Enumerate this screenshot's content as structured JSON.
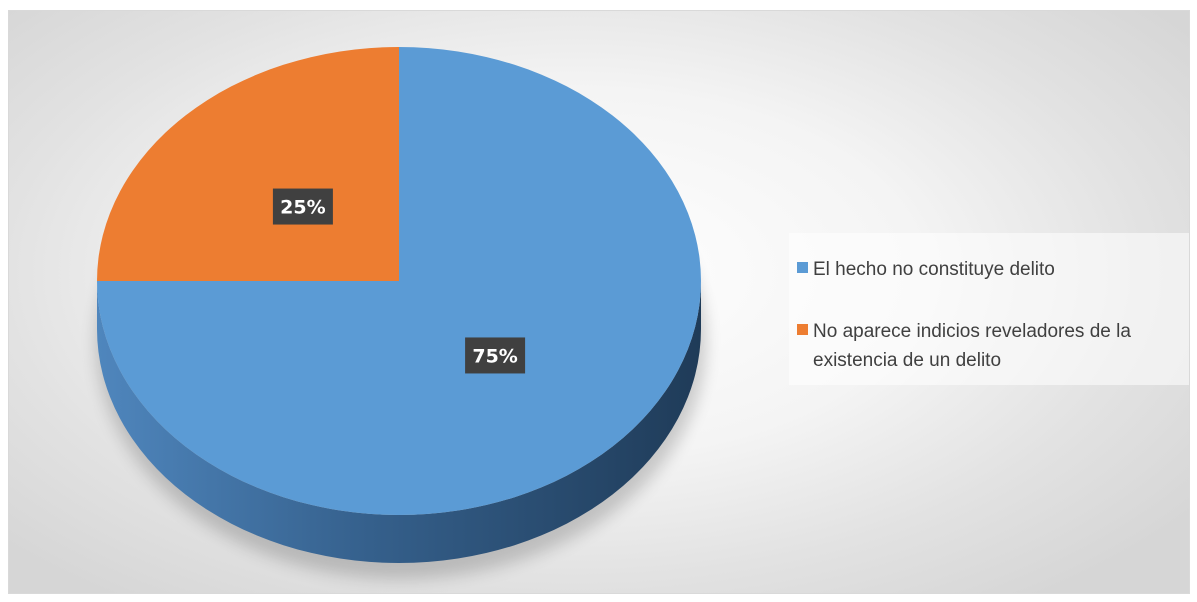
{
  "chart_data": {
    "type": "pie",
    "categories": [
      "El hecho no constituye delito",
      "No aparece indicios reveladores de la existencia de un delito"
    ],
    "values": [
      75,
      25
    ],
    "data_labels": [
      "75%",
      "25%"
    ],
    "colors": [
      "#5B9BD5",
      "#ED7D31"
    ],
    "legend_position": "right",
    "title": ""
  },
  "legend": {
    "items": [
      {
        "label": "El hecho no constituye delito",
        "color": "#5B9BD5"
      },
      {
        "label": "No aparece indicios reveladores de la existencia de un delito",
        "color": "#ED7D31"
      }
    ]
  }
}
